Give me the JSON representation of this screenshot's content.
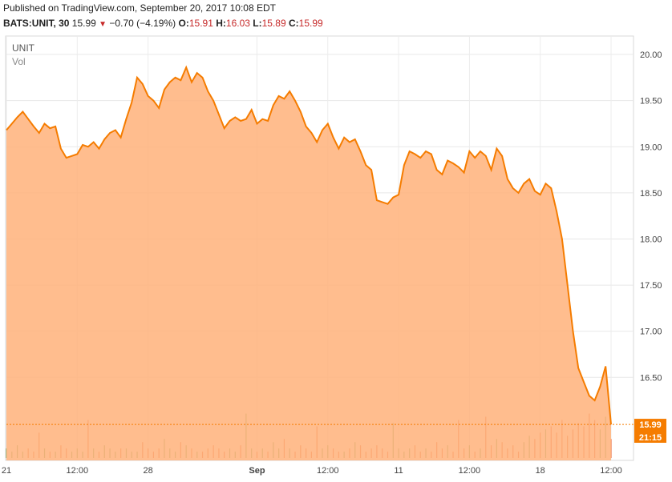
{
  "header": {
    "published": "Published on TradingView.com, September 20, 2017 10:08 EDT",
    "symbol": "BATS:UNIT, 30",
    "last": "15.99",
    "change": "−0.70 (−4.19%)",
    "o_label": "O:",
    "o_value": "15.91",
    "h_label": "H:",
    "h_value": "16.03",
    "l_label": "L:",
    "l_value": "15.89",
    "c_label": "C:",
    "c_value": "15.99"
  },
  "legend": {
    "ticker": "UNIT",
    "vol": "Vol"
  },
  "price_tag": "15.99",
  "time_tag": "21:15",
  "colors": {
    "line": "#f57c00",
    "fill": "#ffb27a",
    "tag": "#f57c00",
    "red": "#c62828"
  },
  "chart_data": {
    "type": "area",
    "ylim": [
      15.6,
      20.2
    ],
    "y_ticks": [
      "20.00",
      "19.50",
      "19.00",
      "18.50",
      "18.00",
      "17.50",
      "17.00",
      "16.50"
    ],
    "x_ticks": [
      "21",
      "12:00",
      "28",
      "Sep",
      "12:00",
      "11",
      "12:00",
      "18",
      "12:00"
    ],
    "x_tick_pos": [
      0,
      13,
      26,
      46,
      59,
      72,
      85,
      98,
      111
    ],
    "values": [
      19.18,
      19.25,
      19.32,
      19.38,
      19.3,
      19.22,
      19.15,
      19.25,
      19.2,
      19.22,
      18.98,
      18.88,
      18.9,
      18.92,
      19.02,
      19.0,
      19.05,
      18.98,
      19.08,
      19.15,
      19.18,
      19.1,
      19.3,
      19.48,
      19.75,
      19.68,
      19.55,
      19.5,
      19.42,
      19.62,
      19.7,
      19.75,
      19.72,
      19.86,
      19.7,
      19.8,
      19.75,
      19.6,
      19.5,
      19.35,
      19.2,
      19.28,
      19.32,
      19.28,
      19.3,
      19.4,
      19.25,
      19.3,
      19.28,
      19.45,
      19.55,
      19.52,
      19.6,
      19.5,
      19.38,
      19.22,
      19.15,
      19.05,
      19.18,
      19.25,
      19.1,
      18.98,
      19.1,
      19.05,
      19.08,
      18.95,
      18.8,
      18.75,
      18.42,
      18.4,
      18.38,
      18.45,
      18.48,
      18.8,
      18.95,
      18.92,
      18.88,
      18.95,
      18.92,
      18.75,
      18.7,
      18.85,
      18.82,
      18.78,
      18.72,
      18.95,
      18.88,
      18.95,
      18.9,
      18.75,
      18.98,
      18.9,
      18.65,
      18.55,
      18.5,
      18.6,
      18.65,
      18.52,
      18.48,
      18.6,
      18.55,
      18.3,
      18.0,
      17.5,
      17.0,
      16.6,
      16.45,
      16.3,
      16.25,
      16.4,
      16.62,
      15.99
    ],
    "volumes": [
      3,
      2,
      4,
      2,
      3,
      2,
      8,
      3,
      2,
      2,
      4,
      3,
      2,
      3,
      2,
      12,
      3,
      2,
      4,
      3,
      2,
      3,
      3,
      2,
      2,
      5,
      3,
      2,
      3,
      6,
      3,
      2,
      5,
      4,
      3,
      2,
      2,
      3,
      4,
      3,
      2,
      3,
      2,
      4,
      14,
      3,
      2,
      3,
      2,
      5,
      3,
      6,
      3,
      2,
      4,
      3,
      2,
      10,
      3,
      4,
      3,
      2,
      2,
      3,
      5,
      4,
      2,
      3,
      4,
      3,
      2,
      11,
      3,
      2,
      3,
      4,
      2,
      3,
      2,
      5,
      3,
      4,
      2,
      12,
      3,
      4,
      2,
      3,
      13,
      4,
      6,
      5,
      3,
      4,
      2,
      5,
      7,
      6,
      8,
      9,
      10,
      8,
      12,
      7,
      9,
      11,
      10,
      14,
      12,
      9,
      13,
      6
    ],
    "vol_ylim": [
      0,
      24
    ]
  }
}
